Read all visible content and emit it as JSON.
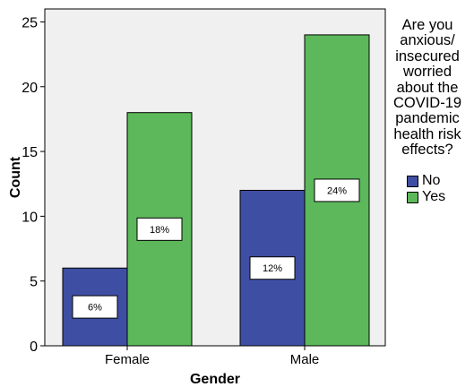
{
  "chart_data": {
    "type": "bar",
    "categories": [
      "Female",
      "Male"
    ],
    "series": [
      {
        "name": "No",
        "values": [
          6,
          12
        ],
        "color": "#3e4fa3",
        "labels": [
          "6%",
          "12%"
        ]
      },
      {
        "name": "Yes",
        "values": [
          18,
          24
        ],
        "color": "#5cb85a",
        "labels": [
          "18%",
          "24%"
        ]
      }
    ],
    "xlabel": "Gender",
    "ylabel": "Count",
    "ylim": [
      0,
      26
    ],
    "yticks": [
      0,
      5,
      10,
      15,
      20,
      25
    ],
    "legend_title": "Are you anxious/ insecured worried about the COVID-19 pandemic health risk effects?",
    "legend_placement": "right",
    "plot_background": "#f0f0f0",
    "grid": false
  }
}
